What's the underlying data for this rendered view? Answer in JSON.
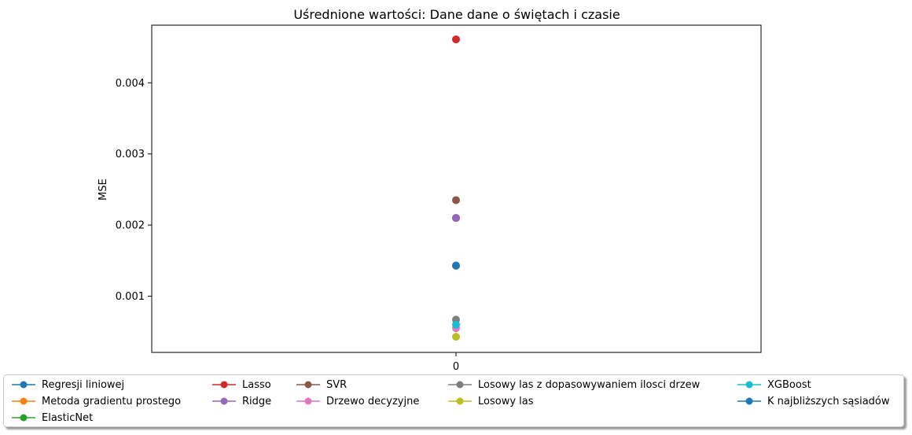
{
  "chart_data": {
    "type": "scatter",
    "title": "Uśrednione wartości: Dane dane o świętach i czasie",
    "xlabel": "",
    "ylabel": "MSE",
    "categories": [
      "0"
    ],
    "x_ticks": [
      "0"
    ],
    "y_ticks": [
      "0.001",
      "0.002",
      "0.003",
      "0.004"
    ],
    "y_tick_values": [
      0.001,
      0.002,
      0.003,
      0.004
    ],
    "ylim": [
      0.00021,
      0.00481
    ],
    "grid": false,
    "legend_position": "bottom-center",
    "series": [
      {
        "name": "Regresji liniowej",
        "color": "#1f77b4",
        "values": [
          0.00143
        ]
      },
      {
        "name": "Metoda gradientu prostego",
        "color": "#ff7f0e",
        "values": [
          0.0021
        ]
      },
      {
        "name": "ElasticNet",
        "color": "#2ca02c",
        "values": [
          0.0021
        ]
      },
      {
        "name": "Lasso",
        "color": "#d62728",
        "values": [
          0.00461
        ]
      },
      {
        "name": "Ridge",
        "color": "#9467bd",
        "values": [
          0.0021
        ]
      },
      {
        "name": "SVR",
        "color": "#8c564b",
        "values": [
          0.00235
        ]
      },
      {
        "name": "Drzewo decyzyjne",
        "color": "#e377c2",
        "values": [
          0.00055
        ]
      },
      {
        "name": "Losowy las z dopasowywaniem ilosci drzew",
        "color": "#7f7f7f",
        "values": [
          0.00067
        ]
      },
      {
        "name": "Losowy las",
        "color": "#bcbd22",
        "values": [
          0.00043
        ]
      },
      {
        "name": "XGBoost",
        "color": "#17becf",
        "values": [
          0.0006
        ]
      },
      {
        "name": "K najbliższych sąsiadów",
        "color": "#1f77b4",
        "values": [
          0.00143
        ]
      }
    ]
  }
}
